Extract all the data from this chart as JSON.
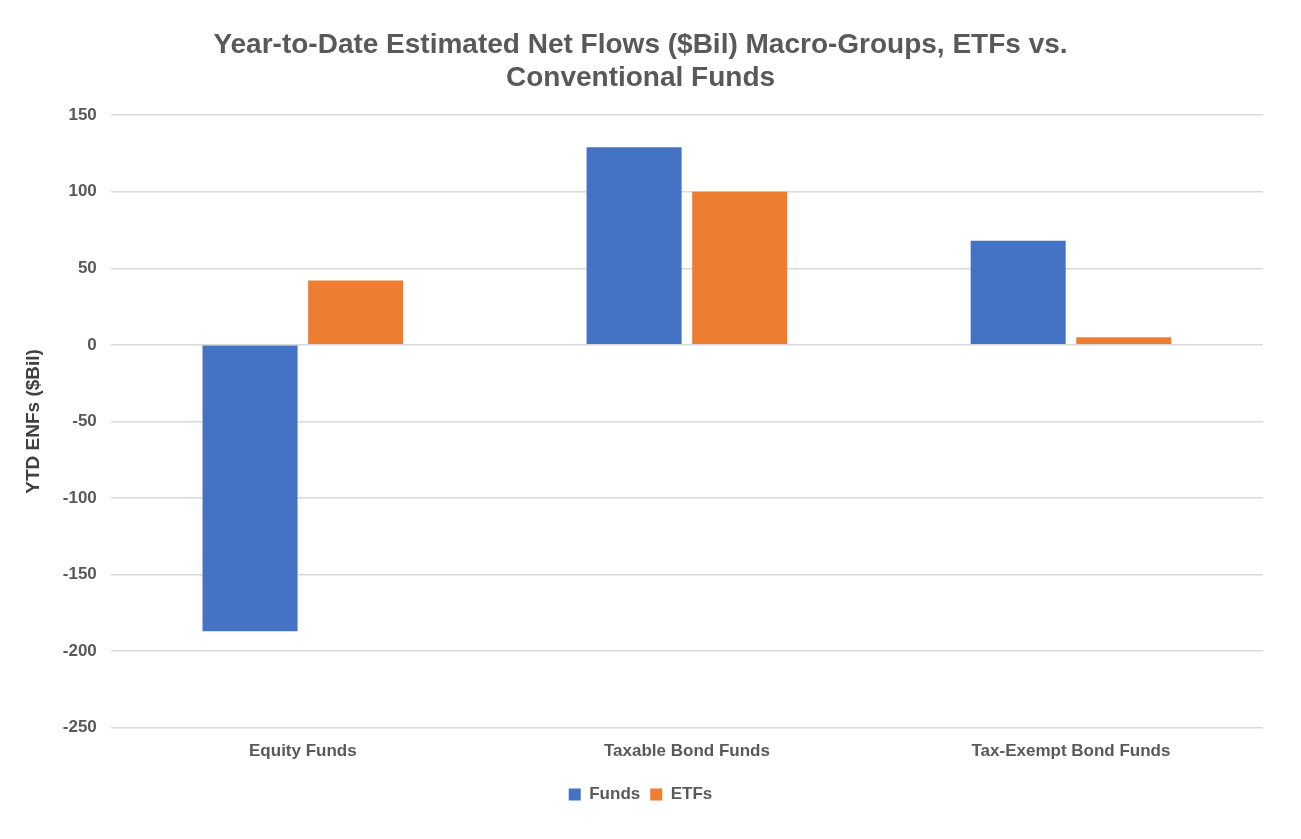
{
  "chart_data": {
    "type": "bar",
    "title": "Year-to-Date Estimated Net Flows ($Bil) Macro-Groups, ETFs vs. Conventional Funds",
    "ylabel": "YTD ENFs ($Bil)",
    "categories": [
      "Equity Funds",
      "Taxable Bond Funds",
      "Tax-Exempt Bond Funds"
    ],
    "series": [
      {
        "name": "Funds",
        "color": "#4472c4",
        "values": [
          -187,
          129,
          68
        ]
      },
      {
        "name": "ETFs",
        "color": "#ed7d31",
        "values": [
          42,
          100,
          5
        ]
      }
    ],
    "ylim": [
      -250,
      150
    ],
    "yticks": [
      -250,
      -200,
      -150,
      -100,
      -50,
      0,
      50,
      100,
      150
    ],
    "grid": "y",
    "legend": "bottom"
  }
}
